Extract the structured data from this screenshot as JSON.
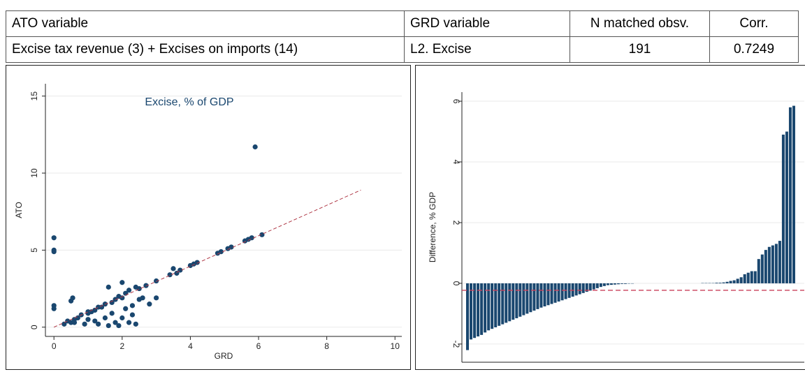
{
  "table": {
    "header": [
      "ATO variable",
      "GRD variable",
      "N matched obsv.",
      "Corr."
    ],
    "rows": [
      [
        "Excise tax revenue (3) + Excises on imports (14)",
        "L2. Excise",
        "191",
        "0.7249"
      ]
    ]
  },
  "chart_data": [
    {
      "type": "scatter",
      "title": "Excise, % of GDP",
      "x_label": "GRD",
      "y_label": "ATO",
      "xlim": [
        -0.25,
        10.2
      ],
      "ylim": [
        -0.6,
        15.8
      ],
      "xticks": [
        0,
        2,
        4,
        6,
        8,
        10
      ],
      "yticks": [
        0,
        5,
        10,
        15
      ],
      "grid": true,
      "color": "#1a476f",
      "x": [
        0,
        0,
        0,
        0,
        0,
        0.4,
        0.5,
        0.5,
        0.55,
        0.6,
        0.6,
        0.7,
        0.8,
        0.9,
        1.0,
        1.0,
        1.1,
        1.2,
        1.2,
        1.3,
        1.4,
        1.5,
        1.5,
        1.6,
        1.6,
        1.7,
        1.7,
        1.8,
        1.8,
        1.9,
        1.9,
        2.0,
        2.0,
        2.0,
        2.1,
        2.1,
        2.2,
        2.2,
        2.3,
        2.3,
        2.4,
        2.4,
        2.5,
        2.6,
        2.7,
        2.8,
        3.0,
        3.0,
        3.4,
        3.5,
        3.6,
        3.7,
        4.0,
        4.1,
        4.2,
        4.8,
        4.9,
        5.1,
        5.2,
        5.6,
        5.7,
        5.8,
        5.9,
        6.1,
        0.3,
        1.0,
        1.3,
        2.5
      ],
      "y": [
        5.8,
        5.0,
        4.9,
        1.4,
        1.2,
        0.4,
        0.3,
        1.7,
        1.9,
        0.5,
        0.3,
        0.6,
        0.8,
        0.2,
        0.9,
        0.5,
        1.0,
        1.1,
        0.4,
        0.2,
        1.3,
        0.6,
        1.5,
        2.6,
        0.1,
        1.6,
        0.9,
        0.3,
        1.8,
        2.0,
        0.1,
        1.9,
        0.6,
        2.9,
        2.2,
        1.2,
        0.3,
        2.4,
        1.4,
        0.8,
        2.6,
        0.2,
        1.8,
        1.9,
        2.7,
        1.5,
        3.0,
        1.9,
        3.4,
        3.8,
        3.5,
        3.7,
        4.0,
        4.1,
        4.2,
        4.8,
        4.9,
        5.1,
        5.2,
        5.6,
        5.7,
        5.8,
        11.7,
        6.0,
        0.2,
        1.0,
        1.3,
        2.5
      ],
      "fit_line": {
        "x": [
          0,
          9
        ],
        "y": [
          0,
          8.9
        ],
        "color": "#b03a48"
      }
    },
    {
      "type": "bar",
      "y_label": "Difference, % GDP",
      "ylim": [
        -2.6,
        6.3
      ],
      "yticks": [
        -2,
        0,
        2,
        4,
        6
      ],
      "grid": true,
      "color": "#1a476f",
      "reference_line": {
        "value": -0.23,
        "color": "#c9415a"
      },
      "values": [
        -2.2,
        -1.85,
        -1.8,
        -1.75,
        -1.7,
        -1.62,
        -1.55,
        -1.5,
        -1.45,
        -1.4,
        -1.35,
        -1.3,
        -1.25,
        -1.2,
        -1.15,
        -1.1,
        -1.05,
        -1.0,
        -0.95,
        -0.9,
        -0.85,
        -0.8,
        -0.76,
        -0.72,
        -0.68,
        -0.64,
        -0.6,
        -0.56,
        -0.52,
        -0.48,
        -0.44,
        -0.4,
        -0.36,
        -0.32,
        -0.28,
        -0.24,
        -0.2,
        -0.16,
        -0.12,
        -0.09,
        -0.06,
        -0.05,
        -0.04,
        -0.03,
        -0.02,
        -0.02,
        -0.01,
        -0.01,
        0,
        0,
        0,
        0,
        0,
        0,
        0,
        0,
        0,
        0,
        0,
        0,
        0,
        0,
        0,
        0,
        0,
        0,
        0,
        0.01,
        0.01,
        0.01,
        0.01,
        0.02,
        0.02,
        0.03,
        0.05,
        0.08,
        0.1,
        0.15,
        0.2,
        0.3,
        0.35,
        0.4,
        0.4,
        0.8,
        0.95,
        1.1,
        1.2,
        1.25,
        1.3,
        1.4,
        4.9,
        5.0,
        5.8,
        5.85
      ]
    }
  ]
}
